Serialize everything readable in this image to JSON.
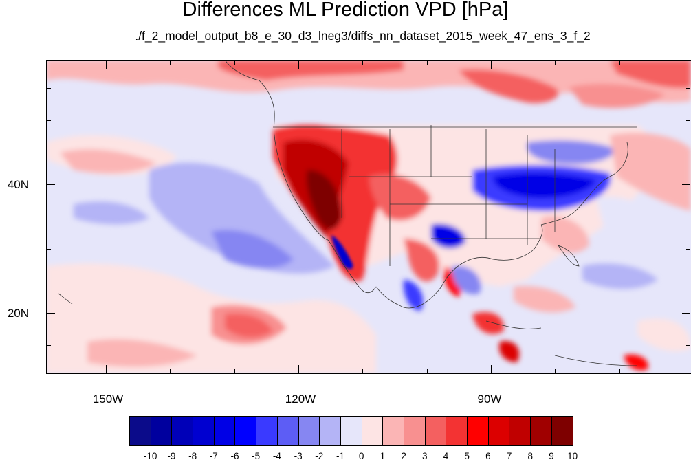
{
  "title": "Differences ML Prediction VPD [hPa]",
  "subtitle": "./f_2_model_output_b8_e_30_d3_lneg3/diffs_nn_dataset_2015_week_47_ens_3_f_2",
  "lat_labels": [
    "40N",
    "20N"
  ],
  "lon_labels": [
    "150W",
    "120W",
    "90W"
  ],
  "colorbar": {
    "labels": [
      "-10",
      "-9",
      "-8",
      "-7",
      "-6",
      "-5",
      "-4",
      "-3",
      "-2",
      "-1",
      "0",
      "1",
      "2",
      "3",
      "4",
      "5",
      "6",
      "7",
      "8",
      "9",
      "10"
    ],
    "colors": [
      "#0b0b8a",
      "#00009e",
      "#0000b8",
      "#0000d0",
      "#0000e6",
      "#0000ff",
      "#3a3aff",
      "#5d5df5",
      "#8686f2",
      "#b4b4f6",
      "#e6e6fa",
      "#fde4e4",
      "#fbb5b5",
      "#f89090",
      "#f46060",
      "#f33333",
      "#ff0000",
      "#dc0000",
      "#c00000",
      "#a00000",
      "#7e0000"
    ]
  },
  "map_colors": {
    "ocean_base": "#e6e6fa",
    "land_base": "#fde4e4"
  }
}
